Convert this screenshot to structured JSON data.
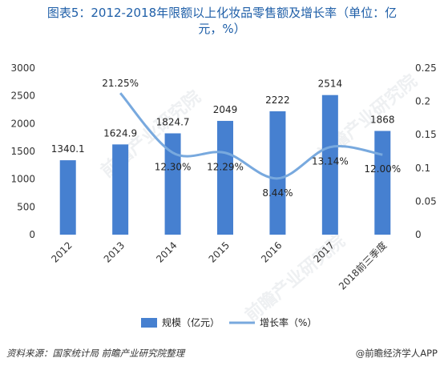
{
  "title": {
    "line1": "图表5：2012-2018年限额以上化妆品零售额及增长率（单位：亿",
    "line2": "元，%）"
  },
  "chart_data": {
    "type": "bar",
    "categories": [
      "2012",
      "2013",
      "2014",
      "2015",
      "2016",
      "2017",
      "2018前三季度"
    ],
    "series": [
      {
        "name": "规模（亿元）",
        "type": "bar",
        "axis": "left",
        "values": [
          1340.1,
          1624.9,
          1824.7,
          2049,
          2222,
          2514,
          1868
        ],
        "labels": [
          "1340.1",
          "1624.9",
          "1824.7",
          "2049",
          "2222",
          "2514",
          "1868"
        ]
      },
      {
        "name": "增长率（%）",
        "type": "line",
        "axis": "right",
        "smooth": true,
        "values": [
          null,
          0.2125,
          0.123,
          0.1229,
          0.0844,
          0.1314,
          0.12
        ],
        "labels": [
          "",
          "21.25%",
          "12.30%",
          "12.29%",
          "8.44%",
          "13.14%",
          "12.00%"
        ]
      }
    ],
    "y_left": {
      "min": 0,
      "max": 3000,
      "ticks": [
        "0",
        "500",
        "1000",
        "1500",
        "2000",
        "2500",
        "3000"
      ]
    },
    "y_right": {
      "min": 0,
      "max": 0.25,
      "ticks": [
        "0",
        "0.05",
        "0.1",
        "0.15",
        "0.2",
        "0.25"
      ]
    },
    "legend_position": "bottom",
    "grid": false
  },
  "colors": {
    "bar": "#4680d0",
    "line": "#78a9de",
    "title": "#1f5fa8",
    "axis_text": "#333333"
  },
  "footer": {
    "source": "资料来源：国家统计局 前瞻产业研究院整理",
    "brand": "@前瞻经济学人APP"
  },
  "watermark": "前瞻产业研究院"
}
